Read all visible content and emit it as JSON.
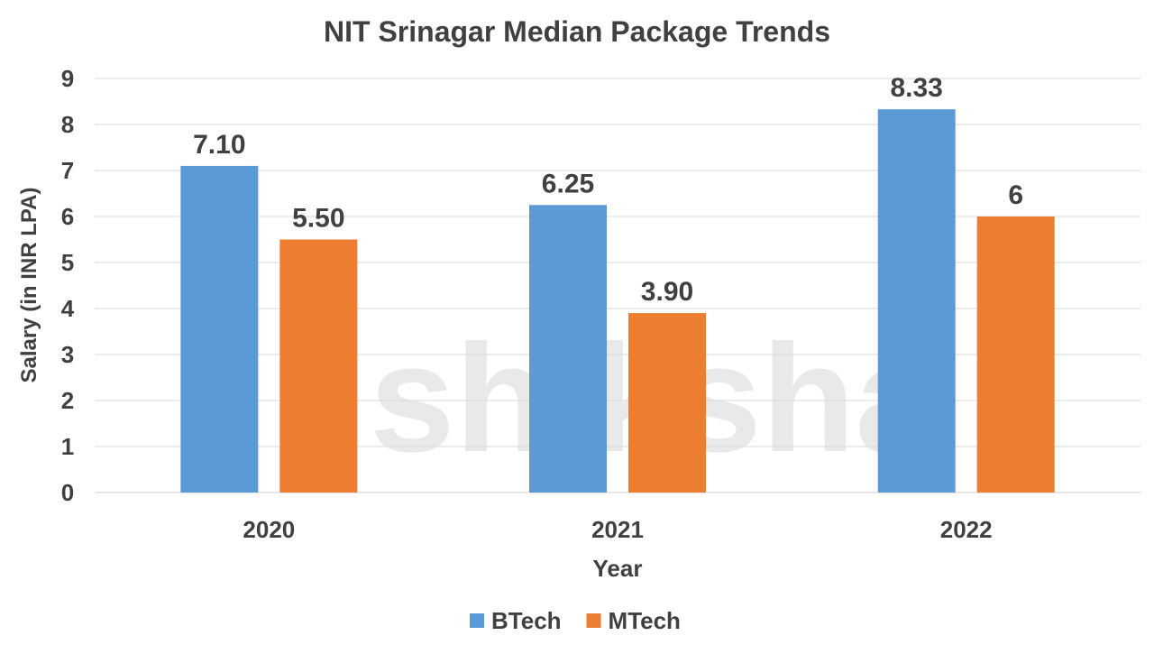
{
  "chart_data": {
    "type": "bar",
    "title": "NIT Srinagar Median Package Trends",
    "xlabel": "Year",
    "ylabel": "Salary (in INR LPA)",
    "categories": [
      "2020",
      "2021",
      "2022"
    ],
    "series": [
      {
        "name": "BTech",
        "values": [
          7.1,
          6.25,
          8.33
        ],
        "labels": [
          "7.10",
          "6.25",
          "8.33"
        ],
        "color": "#5B9BD5"
      },
      {
        "name": "MTech",
        "values": [
          5.5,
          3.9,
          6
        ],
        "labels": [
          "5.50",
          "3.90",
          "6"
        ],
        "color": "#ED7D31"
      }
    ],
    "ylim": [
      0,
      9
    ],
    "yticks": [
      "0",
      "1",
      "2",
      "3",
      "4",
      "5",
      "6",
      "7",
      "8",
      "9"
    ],
    "grid": true,
    "legend": "bottom"
  },
  "watermark": "shiksha"
}
